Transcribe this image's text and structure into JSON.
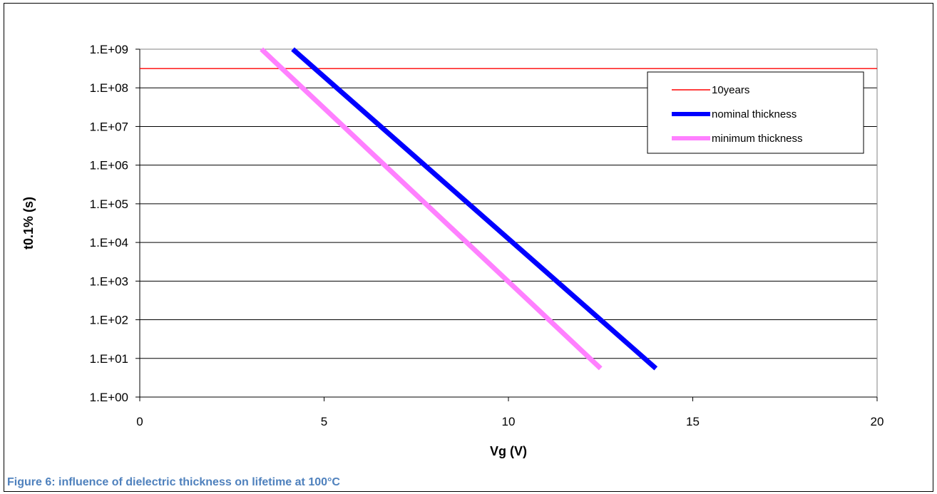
{
  "caption": "Figure 6: influence of dielectric thickness on lifetime at 100°C",
  "chart_data": {
    "type": "line",
    "title": "",
    "xlabel": "Vg (V)",
    "ylabel": "t0.1% (s)",
    "xlim": [
      0,
      20
    ],
    "ylim": [
      1,
      1000000000
    ],
    "yscale": "log",
    "x_ticks": [
      "0",
      "5",
      "10",
      "15",
      "20"
    ],
    "x_tick_values": [
      0,
      5,
      10,
      15,
      20
    ],
    "y_ticks": [
      "1.E+00",
      "1.E+01",
      "1.E+02",
      "1.E+03",
      "1.E+04",
      "1.E+05",
      "1.E+06",
      "1.E+07",
      "1.E+08",
      "1.E+09"
    ],
    "y_tick_values": [
      1,
      10,
      100,
      1000,
      10000,
      100000,
      1000000,
      10000000,
      100000000,
      1000000000
    ],
    "grid": "horizontal",
    "legend_position": "top-right",
    "series": [
      {
        "name": "10years",
        "color": "#ff0000",
        "width": "thin",
        "x": [
          0,
          20
        ],
        "y": [
          315360000,
          315360000
        ]
      },
      {
        "name": "nominal thickness",
        "color": "#0000ff",
        "width": "thick",
        "x": [
          4.15,
          14.0
        ],
        "y": [
          1000000000,
          5.5
        ]
      },
      {
        "name": "minimum thickness",
        "color": "#ff80ff",
        "width": "thick",
        "x": [
          3.3,
          12.5
        ],
        "y": [
          1000000000,
          5.5
        ]
      }
    ]
  }
}
